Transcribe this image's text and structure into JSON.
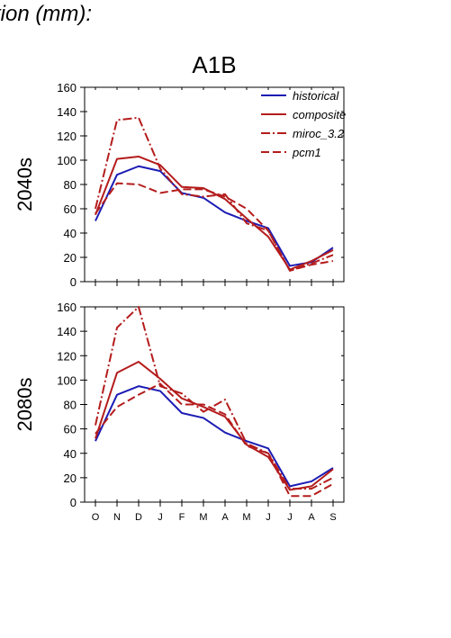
{
  "caption": "tion (mm):",
  "chart_data": {
    "type": "line",
    "title": "A1B",
    "categories": [
      "O",
      "N",
      "D",
      "J",
      "F",
      "M",
      "A",
      "M",
      "J",
      "J",
      "A",
      "S"
    ],
    "ylim": [
      0,
      160
    ],
    "yticks": [
      0,
      20,
      40,
      60,
      80,
      100,
      120,
      140,
      160
    ],
    "legend_position": "top-right",
    "legend": [
      {
        "name": "historical",
        "color": "#1c1cb4",
        "dash": "solid"
      },
      {
        "name": "composite",
        "color": "#b41c1c",
        "dash": "solid"
      },
      {
        "name": "miroc_3.2",
        "color": "#b41c1c",
        "dash": "dashdot"
      },
      {
        "name": "pcm1",
        "color": "#b41c1c",
        "dash": "dashed"
      }
    ],
    "panels": [
      {
        "row_label": "2040s",
        "show_legend": true,
        "show_month_labels": false,
        "series": [
          {
            "name": "historical",
            "values": [
              50,
              88,
              95,
              91,
              73,
              69,
              57,
              50,
              44,
              13,
              16,
              28
            ]
          },
          {
            "name": "composite",
            "values": [
              55,
              101,
              103,
              96,
              78,
              77,
              68,
              52,
              37,
              10,
              17,
              26
            ]
          },
          {
            "name": "miroc_3.2",
            "values": [
              60,
              133,
              135,
              93,
              72,
              70,
              72,
              48,
              42,
              9,
              15,
              22
            ]
          },
          {
            "name": "pcm1",
            "values": [
              56,
              81,
              80,
              73,
              76,
              76,
              70,
              60,
              42,
              9,
              14,
              17
            ]
          }
        ]
      },
      {
        "row_label": "2080s",
        "show_legend": false,
        "show_month_labels": true,
        "series": [
          {
            "name": "historical",
            "values": [
              50,
              88,
              95,
              91,
              73,
              69,
              57,
              50,
              44,
              13,
              17,
              28
            ]
          },
          {
            "name": "composite",
            "values": [
              52,
              106,
              115,
              101,
              85,
              78,
              70,
              47,
              37,
              10,
              13,
              27
            ]
          },
          {
            "name": "miroc_3.2",
            "values": [
              63,
              143,
              160,
              95,
              89,
              74,
              84,
              48,
              40,
              11,
              11,
              20
            ]
          },
          {
            "name": "pcm1",
            "values": [
              56,
              78,
              88,
              97,
              80,
              80,
              72,
              46,
              40,
              5,
              5,
              15
            ]
          }
        ]
      }
    ]
  }
}
